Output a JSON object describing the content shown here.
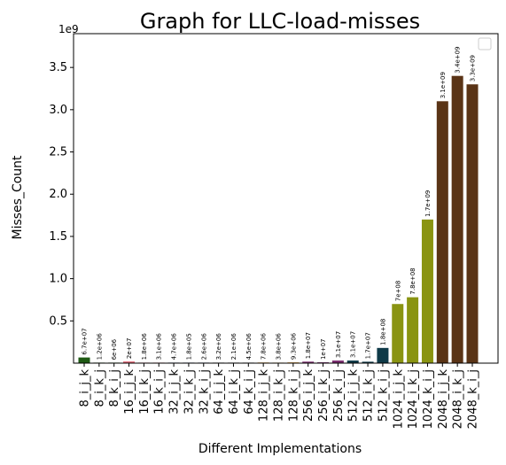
{
  "chart_data": {
    "type": "bar",
    "title": "Graph for LLC-load-misses",
    "xlabel": "Different Implementations",
    "ylabel": "Misses_Count",
    "y_multiplier_label": "1e9",
    "ylim": [
      0,
      3.9
    ],
    "yticks": [
      "0.5",
      "1.0",
      "1.5",
      "2.0",
      "2.5",
      "3.0",
      "3.5"
    ],
    "ytick_values": [
      0.5,
      1.0,
      1.5,
      2.0,
      2.5,
      3.0,
      3.5
    ],
    "legend": "top-right (empty)",
    "grid": false,
    "categories": [
      "8_i_j_k",
      "8_i_k_j",
      "8_k_i_j",
      "16_i_j_k",
      "16_i_k_j",
      "16_k_i_j",
      "32_i_j_k",
      "32_i_k_j",
      "32_k_i_j",
      "64_i_j_k",
      "64_i_k_j",
      "64_k_i_j",
      "128_i_j_k",
      "128_i_k_j",
      "128_k_i_j",
      "256_i_j_k",
      "256_i_k_j",
      "256_k_i_j",
      "512_i_j_k",
      "512_i_k_j",
      "512_k_i_j",
      "1024_i_j_k",
      "1024_i_k_j",
      "1024_k_i_j",
      "2048_i_j_k",
      "2048_i_k_j",
      "2048_k_i_j"
    ],
    "values": [
      67000000,
      1200000,
      6000000,
      20000000,
      1800000,
      3100000,
      4700000,
      180000,
      2600000,
      3200000,
      2100000,
      4500000,
      7800000,
      3800000,
      9300000,
      18000000,
      10000000,
      31000000,
      31000000,
      17000000,
      180000000,
      700000000,
      780000000,
      1700000000,
      3100000000,
      3400000000,
      3300000000
    ],
    "data_labels": [
      "6.7e+07",
      "1.2e+06",
      "6e+06",
      "2e+07",
      "1.8e+06",
      "3.1e+06",
      "4.7e+06",
      "1.8e+05",
      "2.6e+06",
      "3.2e+06",
      "2.1e+06",
      "4.5e+06",
      "7.8e+06",
      "3.8e+06",
      "9.3e+06",
      "1.8e+07",
      "1e+07",
      "3.1e+07",
      "3.1e+07",
      "1.7e+07",
      "1.8e+08",
      "7e+08",
      "7.8e+08",
      "1.7e+09",
      "3.1e+09",
      "3.4e+09",
      "3.3e+09"
    ],
    "colors": [
      "#1e5a14",
      "#1e5a14",
      "#1e5a14",
      "#e06a78",
      "#e06a78",
      "#e06a78",
      "#2e3f6e",
      "#2e3f6e",
      "#2e3f6e",
      "#4a4a4a",
      "#4a4a4a",
      "#4a4a4a",
      "#e0a040",
      "#e0a040",
      "#e0a040",
      "#7a2e6e",
      "#7a2e6e",
      "#7a2e6e",
      "#0f3a48",
      "#0f3a48",
      "#0f3a48",
      "#8a9412",
      "#8a9412",
      "#8a9412",
      "#5a3416",
      "#5a3416",
      "#5a3416"
    ]
  }
}
